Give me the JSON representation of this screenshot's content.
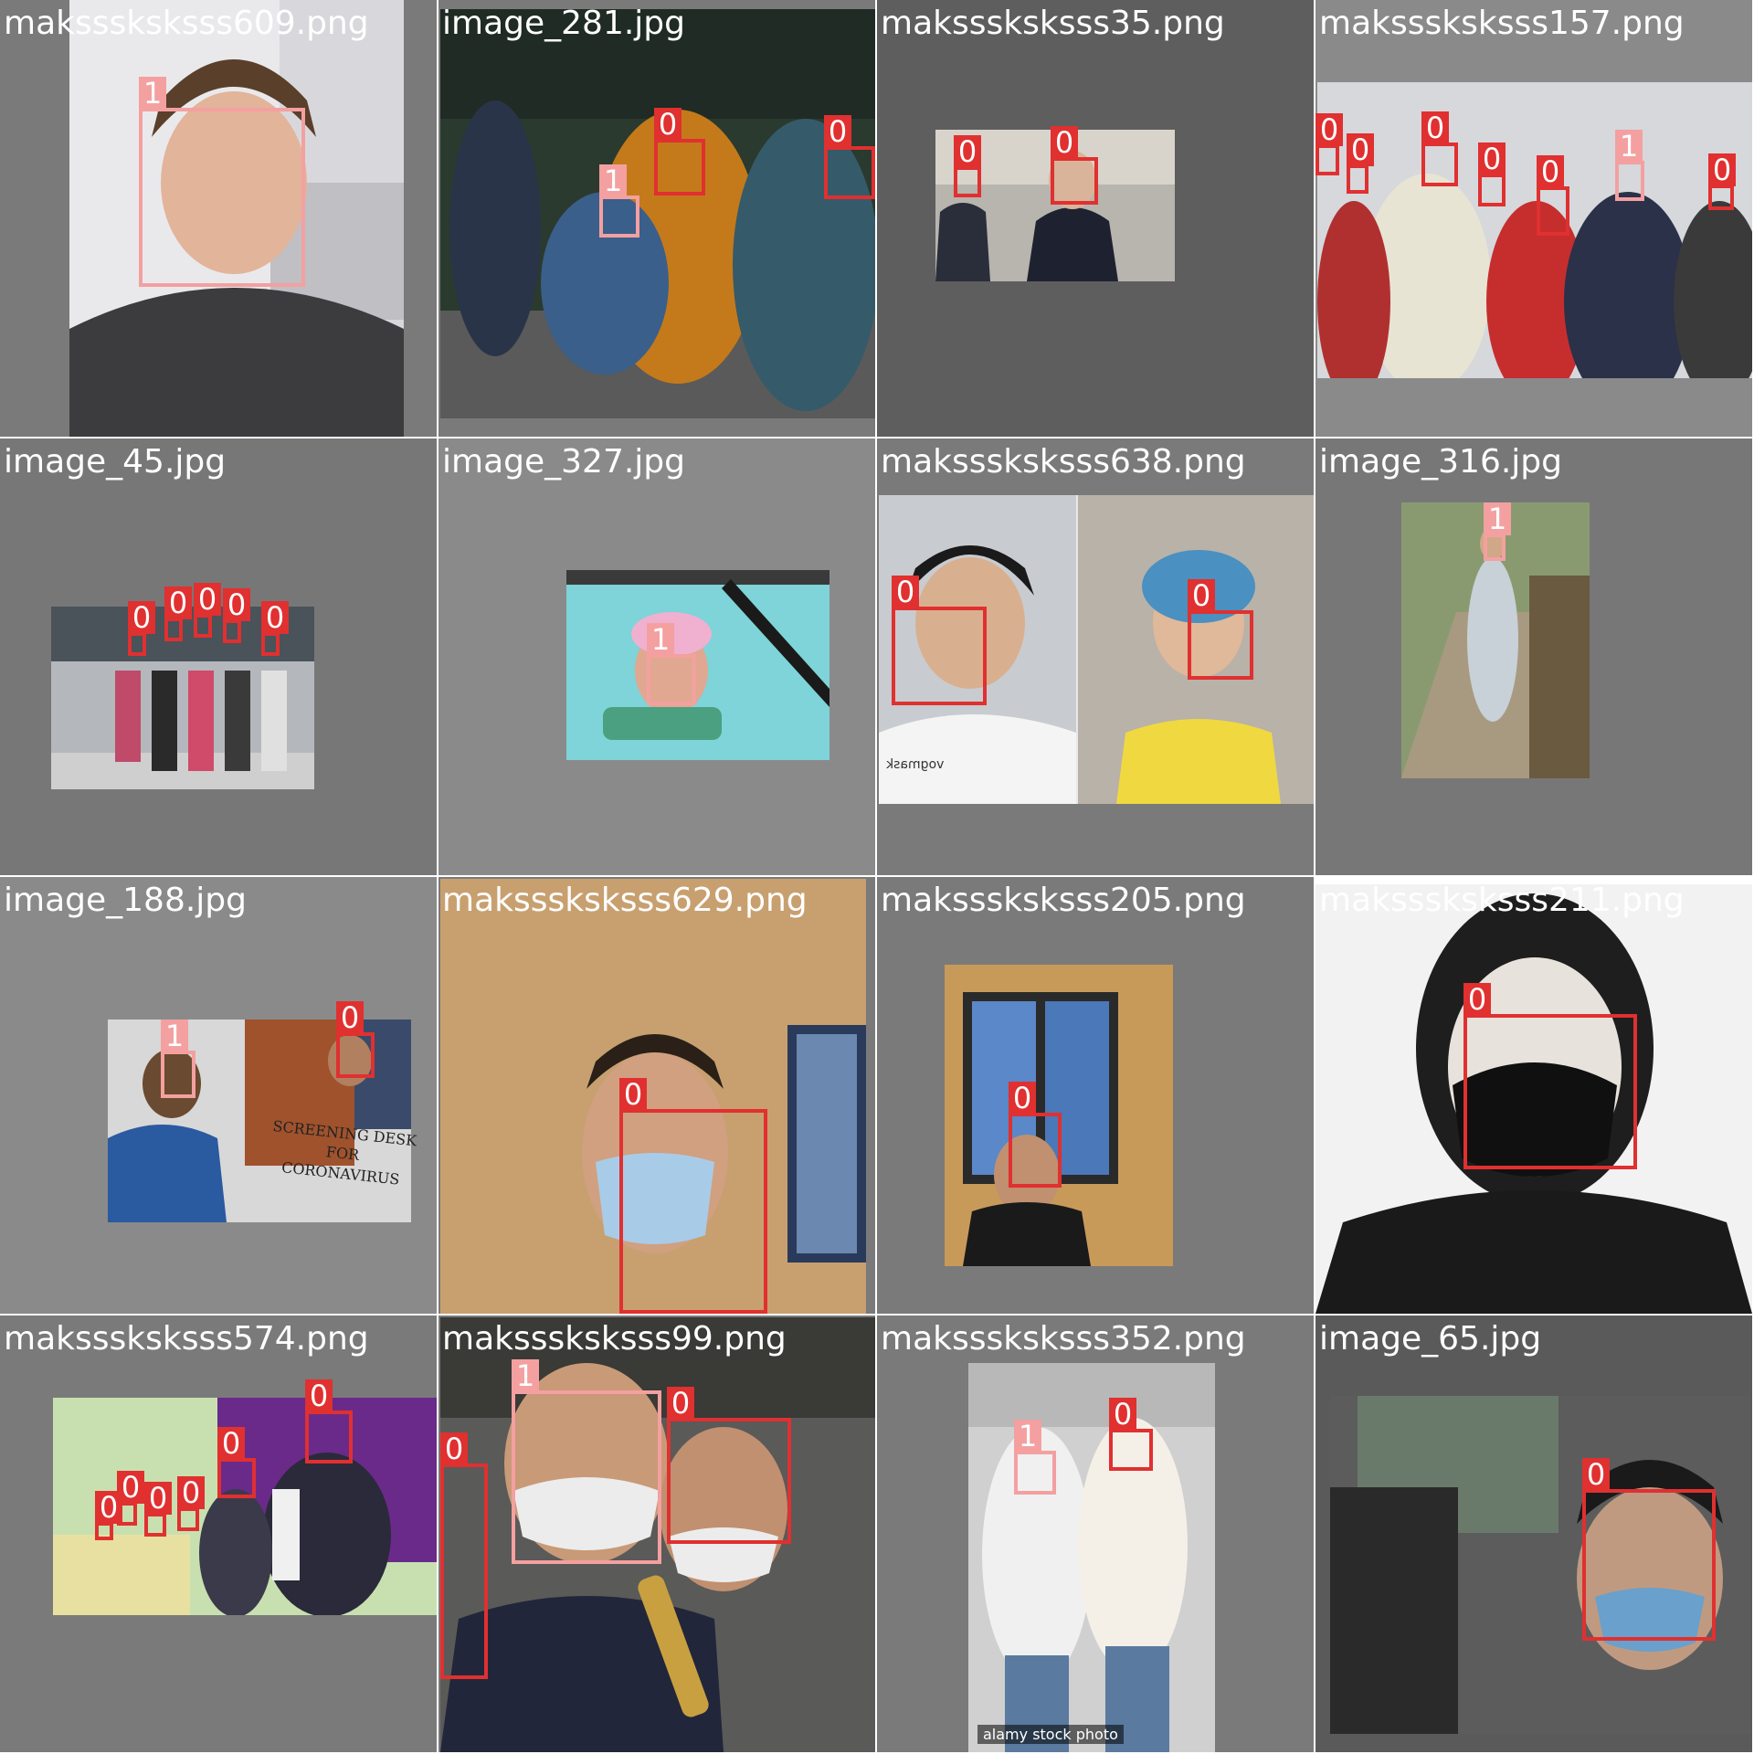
{
  "mosaic": {
    "tiles": [
      {
        "file": "maksssksksss609.png",
        "labels": [
          "1"
        ]
      },
      {
        "file": "image_281.jpg",
        "labels": [
          "0",
          "0",
          "1"
        ]
      },
      {
        "file": "maksssksksss35.png",
        "labels": [
          "0",
          "0"
        ]
      },
      {
        "file": "maksssksksss157.png",
        "labels": [
          "0",
          "0",
          "0",
          "0",
          "0",
          "1",
          "0"
        ]
      },
      {
        "file": "image_45.jpg",
        "labels": [
          "0",
          "0",
          "0",
          "0",
          "0"
        ]
      },
      {
        "file": "image_327.jpg",
        "labels": [
          "1"
        ]
      },
      {
        "file": "maksssksksss638.png",
        "labels": [
          "0",
          "0"
        ],
        "shirt_text": "vogmask"
      },
      {
        "file": "image_316.jpg",
        "labels": [
          "1"
        ]
      },
      {
        "file": "image_188.jpg",
        "labels": [
          "1",
          "0"
        ],
        "sign_text": [
          "SCREENING DESK",
          "FOR",
          "CORONAVIRUS"
        ]
      },
      {
        "file": "maksssksksss629.png",
        "labels": [
          "0"
        ]
      },
      {
        "file": "maksssksksss205.png",
        "labels": [
          "0"
        ]
      },
      {
        "file": "maksssksksss211.png",
        "labels": [
          "0"
        ]
      },
      {
        "file": "maksssksksss574.png",
        "labels": [
          "0",
          "0",
          "0",
          "0",
          "0",
          "0"
        ]
      },
      {
        "file": "maksssksksss99.png",
        "labels": [
          "1",
          "0",
          "0"
        ]
      },
      {
        "file": "maksssksksss352.png",
        "labels": [
          "1",
          "0"
        ],
        "watermark": "alamy stock photo"
      },
      {
        "file": "image_65.jpg",
        "labels": [
          "0"
        ]
      }
    ]
  },
  "colors": {
    "class_0": "#e03030",
    "class_1": "#f4a0a0",
    "tile_background": "#7a7a7a"
  }
}
